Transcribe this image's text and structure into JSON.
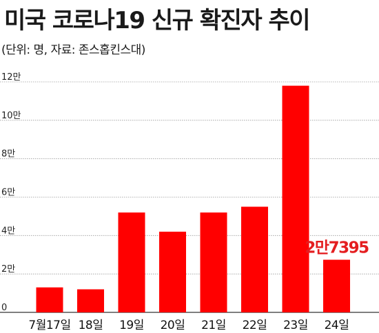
{
  "chart_data": {
    "type": "bar",
    "title": "미국 코로나19 신규 확진자 추이",
    "subtitle": "(단위: 명, 자료: 존스홉킨스대)",
    "categories": [
      "7월17일",
      "18일",
      "19일",
      "20일",
      "21일",
      "22일",
      "23일",
      "24일"
    ],
    "values": [
      13000,
      12000,
      52000,
      42000,
      52000,
      55000,
      118000,
      27395
    ],
    "y_ticks": [
      {
        "value": 0,
        "label": "0"
      },
      {
        "value": 20000,
        "label": "2만"
      },
      {
        "value": 40000,
        "label": "4만"
      },
      {
        "value": 60000,
        "label": "6만"
      },
      {
        "value": 80000,
        "label": "8만"
      },
      {
        "value": 100000,
        "label": "10만"
      },
      {
        "value": 120000,
        "label": "12만"
      }
    ],
    "ylim": [
      0,
      120000
    ],
    "grid": true,
    "bar_color": "#ff0000",
    "annotation_color": "#e41e20",
    "data_labels": [
      {
        "index": 7,
        "text": "2만7395"
      }
    ]
  }
}
